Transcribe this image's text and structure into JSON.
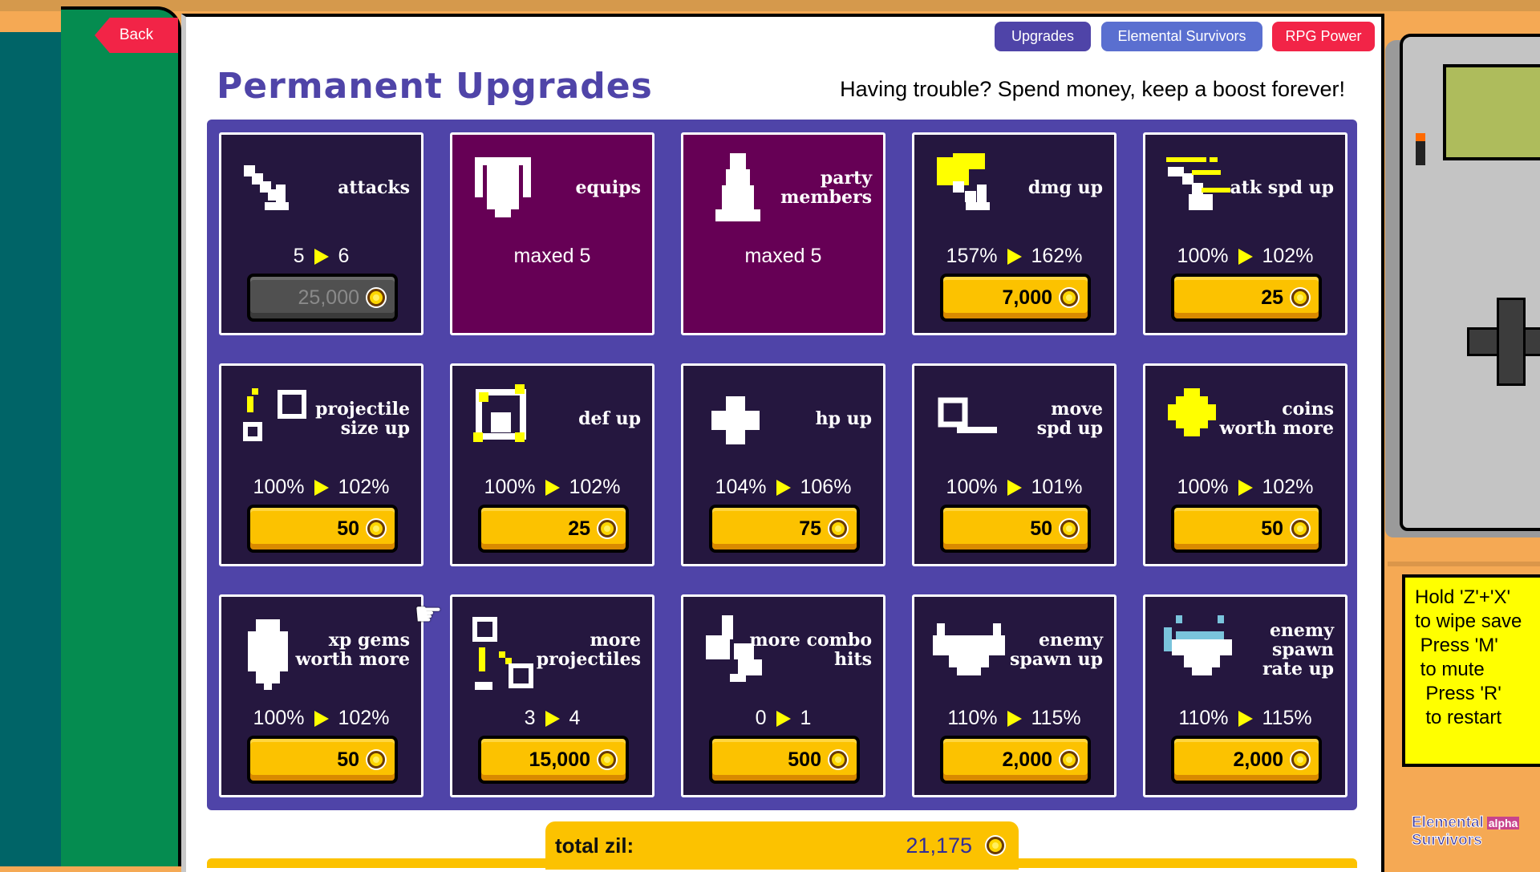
{
  "nav": {
    "back_label": "Back"
  },
  "tabs": [
    {
      "label": "Upgrades",
      "color": "#4f44a8"
    },
    {
      "label": "Elemental Survivors",
      "color": "#5a6fd0"
    },
    {
      "label": "RPG Power",
      "color": "#f22447"
    }
  ],
  "header": {
    "title": "Permanent Upgrades",
    "subtitle": "Having trouble? Spend money, keep a boost forever!"
  },
  "cards": [
    {
      "label": "attacks",
      "icon": "sword-icon",
      "from": "5",
      "to": "6",
      "cost": "25,000",
      "state": "disabled"
    },
    {
      "label": "equips",
      "icon": "shield-icon",
      "maxed_text": "maxed 5",
      "state": "maxed"
    },
    {
      "label": "party\nmembers",
      "icon": "person-icon",
      "maxed_text": "maxed 5",
      "state": "maxed"
    },
    {
      "label": "dmg up",
      "icon": "damage-sword-icon",
      "from": "157%",
      "to": "162%",
      "cost": "7,000",
      "state": "available"
    },
    {
      "label": "atk spd up",
      "icon": "speed-sword-icon",
      "from": "100%",
      "to": "102%",
      "cost": "25",
      "state": "available"
    },
    {
      "label": "projectile\nsize up",
      "icon": "projectile-size-icon",
      "from": "100%",
      "to": "102%",
      "cost": "50",
      "state": "available"
    },
    {
      "label": "def up",
      "icon": "defense-icon",
      "from": "100%",
      "to": "102%",
      "cost": "25",
      "state": "available"
    },
    {
      "label": "hp up",
      "icon": "health-cross-icon",
      "from": "104%",
      "to": "106%",
      "cost": "75",
      "state": "available"
    },
    {
      "label": "move\nspd up",
      "icon": "move-speed-icon",
      "from": "100%",
      "to": "101%",
      "cost": "50",
      "state": "available"
    },
    {
      "label": "coins\nworth more",
      "icon": "coin-icon",
      "from": "100%",
      "to": "102%",
      "cost": "50",
      "state": "available"
    },
    {
      "label": "xp gems\nworth more",
      "icon": "gem-icon",
      "from": "100%",
      "to": "102%",
      "cost": "50",
      "state": "available"
    },
    {
      "label": "more\nprojectiles",
      "icon": "projectiles-icon",
      "from": "3",
      "to": "4",
      "cost": "15,000",
      "state": "available"
    },
    {
      "label": "more combo\nhits",
      "icon": "combo-hits-icon",
      "from": "0",
      "to": "1",
      "cost": "500",
      "state": "available"
    },
    {
      "label": "enemy\nspawn up",
      "icon": "enemy-icon",
      "from": "110%",
      "to": "115%",
      "cost": "2,000",
      "state": "available"
    },
    {
      "label": "enemy\nspawn\nrate up",
      "icon": "enemy-rate-icon",
      "from": "110%",
      "to": "115%",
      "cost": "2,000",
      "state": "available"
    }
  ],
  "footer": {
    "total_label": "total zil:",
    "total_value": "21,175"
  },
  "note": {
    "text": "Hold 'Z'+'X'\nto wipe save\n Press 'M'\n to mute\n  Press 'R'\n  to restart"
  },
  "logo": {
    "line1": "Elemental",
    "line2": "Survivors",
    "badge": "alpha"
  },
  "colors": {
    "accent": "#4f44a8",
    "card_bg": "#25173f",
    "maxed_bg": "#660055",
    "button": "#fcc200",
    "arrow": "#ffff00"
  }
}
